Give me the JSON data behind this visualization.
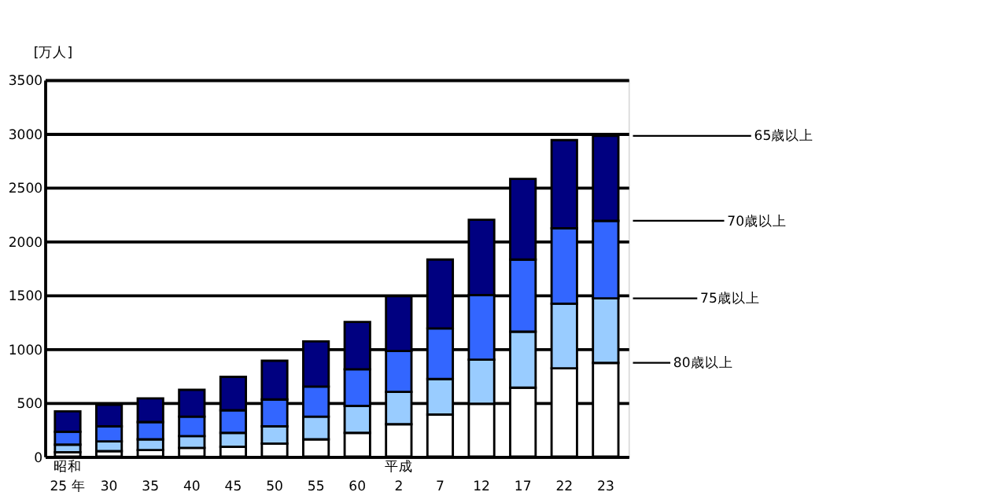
{
  "chart_data": {
    "type": "bar",
    "stacked": true,
    "ylabel": "[万人]",
    "categories": [
      "昭和\n25 年",
      "30",
      "35",
      "40",
      "45",
      "50",
      "55",
      "60",
      "平成\n2",
      "7",
      "12",
      "17",
      "22",
      "23"
    ],
    "series": [
      {
        "color": "#ffffff",
        "values": [
          40,
          50,
          60,
          80,
          90,
          120,
          160,
          220,
          300,
          390,
          490,
          640,
          820,
          870
        ]
      },
      {
        "color": "#99ccff",
        "values": [
          70,
          90,
          100,
          110,
          130,
          160,
          210,
          250,
          300,
          330,
          410,
          520,
          600,
          600
        ]
      },
      {
        "color": "#3366ff",
        "values": [
          120,
          140,
          160,
          180,
          210,
          250,
          280,
          340,
          380,
          470,
          600,
          670,
          700,
          720
        ]
      },
      {
        "color": "#000080",
        "values": [
          190,
          200,
          220,
          250,
          310,
          360,
          420,
          440,
          510,
          640,
          700,
          750,
          820,
          790
        ]
      }
    ],
    "ylim": [
      0,
      3500
    ],
    "yticks": [
      0,
      500,
      1000,
      1500,
      2000,
      2500,
      3000,
      3500
    ],
    "grid": "y",
    "annotations": [
      "80歳以上",
      "75歳以上",
      "70歳以上",
      "65歳以上"
    ]
  }
}
